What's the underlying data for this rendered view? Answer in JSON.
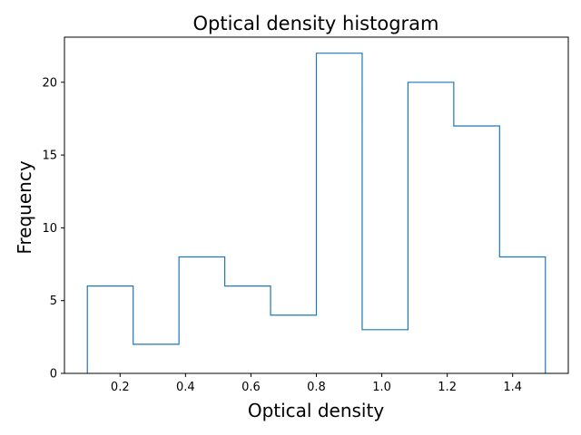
{
  "chart_data": {
    "type": "histogram",
    "title": "Optical density histogram",
    "xlabel": "Optical density",
    "ylabel": "Frequency",
    "bin_edges": [
      0.1,
      0.24,
      0.38,
      0.52,
      0.66,
      0.8,
      0.94,
      1.08,
      1.22,
      1.36,
      1.5
    ],
    "counts": [
      6,
      2,
      8,
      6,
      4,
      22,
      3,
      20,
      17,
      8
    ],
    "xlim": [
      0.03,
      1.57
    ],
    "ylim": [
      0,
      23.1
    ],
    "xticks": [
      0.2,
      0.4,
      0.6,
      0.8,
      1.0,
      1.2,
      1.4
    ],
    "xtick_labels": [
      "0.2",
      "0.4",
      "0.6",
      "0.8",
      "1.0",
      "1.2",
      "1.4"
    ],
    "yticks": [
      0,
      5,
      10,
      15,
      20
    ],
    "ytick_labels": [
      "0",
      "5",
      "10",
      "15",
      "20"
    ],
    "histtype": "step",
    "line_color": "#1f77b4",
    "grid": false,
    "legend": "none"
  }
}
